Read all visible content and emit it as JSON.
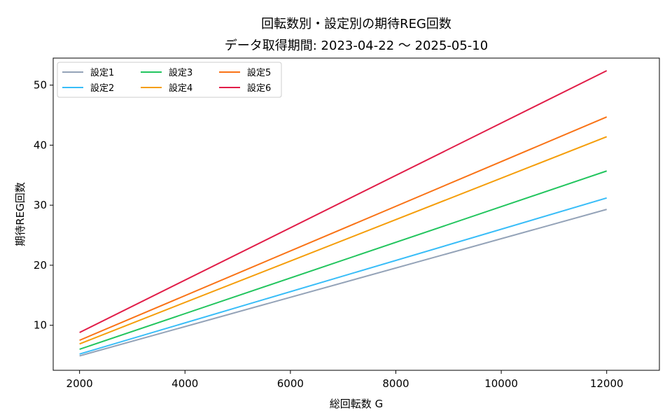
{
  "chart_data": {
    "type": "line",
    "title": "回転数別・設定別の期待REG回数",
    "subtitle": "データ取得期間: 2023-04-22 〜 2025-05-10",
    "xlabel": "総回転数 G",
    "ylabel": "期待REG回数",
    "x": [
      2000,
      12000
    ],
    "xlim": [
      1500,
      13000
    ],
    "ylim": [
      2.5,
      54.5
    ],
    "xticks": [
      2000,
      4000,
      6000,
      8000,
      10000,
      12000
    ],
    "yticks": [
      10,
      20,
      30,
      40,
      50
    ],
    "grid": false,
    "legend_position": "top-left",
    "series": [
      {
        "name": "設定1",
        "color": "#94a3b8",
        "values": [
          4.9,
          29.3
        ]
      },
      {
        "name": "設定2",
        "color": "#38bdf8",
        "values": [
          5.2,
          31.2
        ]
      },
      {
        "name": "設定3",
        "color": "#22c55e",
        "values": [
          6.0,
          35.7
        ]
      },
      {
        "name": "設定4",
        "color": "#f59e0b",
        "values": [
          6.9,
          41.4
        ]
      },
      {
        "name": "設定5",
        "color": "#f97316",
        "values": [
          7.5,
          44.7
        ]
      },
      {
        "name": "設定6",
        "color": "#e11d48",
        "values": [
          8.8,
          52.4
        ]
      }
    ]
  }
}
